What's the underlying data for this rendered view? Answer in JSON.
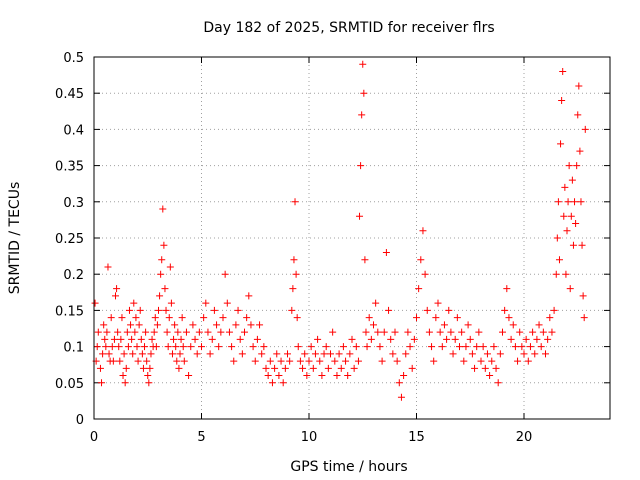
{
  "chart_data": {
    "type": "scatter",
    "title": "Day 182 of 2025, SRMTID for receiver flrs",
    "xlabel": "GPS time / hours",
    "ylabel": "SRMTID / TECUs",
    "xlim": [
      0,
      24
    ],
    "ylim": [
      0,
      0.5
    ],
    "xticks": [
      0,
      5,
      10,
      15,
      20
    ],
    "xtick_labels": [
      "0",
      "5",
      "10",
      "15",
      "20"
    ],
    "yticks": [
      0,
      0.05,
      0.1,
      0.15,
      0.2,
      0.25,
      0.3,
      0.35,
      0.4,
      0.45,
      0.5
    ],
    "ytick_labels": [
      "0",
      "0.05",
      "0.1",
      "0.15",
      "0.2",
      "0.25",
      "0.3",
      "0.35",
      "0.4",
      "0.45",
      "0.5"
    ],
    "grid": true,
    "marker": "+",
    "marker_color": "#ff0000",
    "series": [
      {
        "points": [
          [
            0.05,
            0.16
          ],
          [
            0.1,
            0.08
          ],
          [
            0.15,
            0.1
          ],
          [
            0.2,
            0.12
          ],
          [
            0.3,
            0.07
          ],
          [
            0.35,
            0.05
          ],
          [
            0.4,
            0.09
          ],
          [
            0.45,
            0.13
          ],
          [
            0.5,
            0.11
          ],
          [
            0.55,
            0.1
          ],
          [
            0.6,
            0.12
          ],
          [
            0.65,
            0.21
          ],
          [
            0.7,
            0.09
          ],
          [
            0.75,
            0.08
          ],
          [
            0.8,
            0.14
          ],
          [
            0.85,
            0.1
          ],
          [
            0.9,
            0.08
          ],
          [
            0.95,
            0.11
          ],
          [
            1.0,
            0.17
          ],
          [
            1.05,
            0.18
          ],
          [
            1.1,
            0.12
          ],
          [
            1.15,
            0.1
          ],
          [
            1.2,
            0.08
          ],
          [
            1.25,
            0.11
          ],
          [
            1.3,
            0.14
          ],
          [
            1.35,
            0.06
          ],
          [
            1.4,
            0.09
          ],
          [
            1.45,
            0.05
          ],
          [
            1.5,
            0.07
          ],
          [
            1.55,
            0.12
          ],
          [
            1.6,
            0.1
          ],
          [
            1.65,
            0.15
          ],
          [
            1.7,
            0.13
          ],
          [
            1.75,
            0.11
          ],
          [
            1.8,
            0.09
          ],
          [
            1.85,
            0.16
          ],
          [
            1.9,
            0.12
          ],
          [
            1.95,
            0.14
          ],
          [
            2.0,
            0.1
          ],
          [
            2.05,
            0.08
          ],
          [
            2.1,
            0.13
          ],
          [
            2.15,
            0.15
          ],
          [
            2.2,
            0.11
          ],
          [
            2.25,
            0.09
          ],
          [
            2.3,
            0.07
          ],
          [
            2.35,
            0.1
          ],
          [
            2.4,
            0.12
          ],
          [
            2.45,
            0.08
          ],
          [
            2.5,
            0.06
          ],
          [
            2.55,
            0.05
          ],
          [
            2.6,
            0.07
          ],
          [
            2.65,
            0.09
          ],
          [
            2.7,
            0.11
          ],
          [
            2.75,
            0.1
          ],
          [
            2.8,
            0.12
          ],
          [
            2.85,
            0.14
          ],
          [
            2.9,
            0.1
          ],
          [
            2.95,
            0.13
          ],
          [
            3.0,
            0.15
          ],
          [
            3.05,
            0.17
          ],
          [
            3.1,
            0.2
          ],
          [
            3.15,
            0.22
          ],
          [
            3.2,
            0.29
          ],
          [
            3.25,
            0.24
          ],
          [
            3.3,
            0.18
          ],
          [
            3.35,
            0.15
          ],
          [
            3.4,
            0.12
          ],
          [
            3.45,
            0.1
          ],
          [
            3.5,
            0.14
          ],
          [
            3.55,
            0.21
          ],
          [
            3.6,
            0.16
          ],
          [
            3.65,
            0.09
          ],
          [
            3.7,
            0.11
          ],
          [
            3.75,
            0.13
          ],
          [
            3.8,
            0.1
          ],
          [
            3.85,
            0.08
          ],
          [
            3.9,
            0.12
          ],
          [
            3.95,
            0.07
          ],
          [
            4.0,
            0.09
          ],
          [
            4.05,
            0.11
          ],
          [
            4.1,
            0.14
          ],
          [
            4.15,
            0.1
          ],
          [
            4.2,
            0.08
          ],
          [
            4.3,
            0.12
          ],
          [
            4.4,
            0.06
          ],
          [
            4.5,
            0.1
          ],
          [
            4.6,
            0.13
          ],
          [
            4.7,
            0.11
          ],
          [
            4.8,
            0.09
          ],
          [
            4.9,
            0.12
          ],
          [
            5.0,
            0.1
          ],
          [
            5.1,
            0.14
          ],
          [
            5.2,
            0.16
          ],
          [
            5.3,
            0.12
          ],
          [
            5.4,
            0.09
          ],
          [
            5.5,
            0.11
          ],
          [
            5.6,
            0.15
          ],
          [
            5.7,
            0.13
          ],
          [
            5.8,
            0.1
          ],
          [
            5.9,
            0.12
          ],
          [
            6.0,
            0.14
          ],
          [
            6.1,
            0.2
          ],
          [
            6.2,
            0.16
          ],
          [
            6.3,
            0.12
          ],
          [
            6.4,
            0.1
          ],
          [
            6.5,
            0.08
          ],
          [
            6.6,
            0.13
          ],
          [
            6.7,
            0.15
          ],
          [
            6.8,
            0.11
          ],
          [
            6.9,
            0.09
          ],
          [
            7.0,
            0.12
          ],
          [
            7.1,
            0.14
          ],
          [
            7.2,
            0.17
          ],
          [
            7.3,
            0.13
          ],
          [
            7.4,
            0.1
          ],
          [
            7.5,
            0.08
          ],
          [
            7.6,
            0.11
          ],
          [
            7.7,
            0.13
          ],
          [
            7.8,
            0.09
          ],
          [
            7.9,
            0.1
          ],
          [
            8.0,
            0.07
          ],
          [
            8.1,
            0.06
          ],
          [
            8.2,
            0.08
          ],
          [
            8.3,
            0.05
          ],
          [
            8.4,
            0.07
          ],
          [
            8.5,
            0.09
          ],
          [
            8.6,
            0.06
          ],
          [
            8.7,
            0.08
          ],
          [
            8.8,
            0.05
          ],
          [
            8.9,
            0.07
          ],
          [
            9.0,
            0.09
          ],
          [
            9.1,
            0.08
          ],
          [
            9.2,
            0.15
          ],
          [
            9.25,
            0.18
          ],
          [
            9.3,
            0.22
          ],
          [
            9.35,
            0.3
          ],
          [
            9.4,
            0.2
          ],
          [
            9.45,
            0.14
          ],
          [
            9.5,
            0.1
          ],
          [
            9.6,
            0.08
          ],
          [
            9.7,
            0.07
          ],
          [
            9.8,
            0.09
          ],
          [
            9.9,
            0.06
          ],
          [
            10.0,
            0.08
          ],
          [
            10.1,
            0.1
          ],
          [
            10.2,
            0.07
          ],
          [
            10.3,
            0.09
          ],
          [
            10.4,
            0.11
          ],
          [
            10.5,
            0.08
          ],
          [
            10.6,
            0.06
          ],
          [
            10.7,
            0.09
          ],
          [
            10.8,
            0.1
          ],
          [
            10.9,
            0.07
          ],
          [
            11.0,
            0.09
          ],
          [
            11.1,
            0.12
          ],
          [
            11.2,
            0.08
          ],
          [
            11.3,
            0.06
          ],
          [
            11.4,
            0.09
          ],
          [
            11.5,
            0.07
          ],
          [
            11.6,
            0.1
          ],
          [
            11.7,
            0.08
          ],
          [
            11.8,
            0.06
          ],
          [
            11.9,
            0.09
          ],
          [
            12.0,
            0.11
          ],
          [
            12.1,
            0.07
          ],
          [
            12.2,
            0.1
          ],
          [
            12.3,
            0.08
          ],
          [
            12.35,
            0.28
          ],
          [
            12.4,
            0.35
          ],
          [
            12.45,
            0.42
          ],
          [
            12.5,
            0.49
          ],
          [
            12.55,
            0.45
          ],
          [
            12.6,
            0.22
          ],
          [
            12.65,
            0.12
          ],
          [
            12.7,
            0.1
          ],
          [
            12.8,
            0.14
          ],
          [
            12.9,
            0.11
          ],
          [
            13.0,
            0.13
          ],
          [
            13.1,
            0.16
          ],
          [
            13.2,
            0.12
          ],
          [
            13.3,
            0.1
          ],
          [
            13.4,
            0.08
          ],
          [
            13.5,
            0.12
          ],
          [
            13.6,
            0.23
          ],
          [
            13.7,
            0.15
          ],
          [
            13.8,
            0.11
          ],
          [
            13.9,
            0.09
          ],
          [
            14.0,
            0.12
          ],
          [
            14.1,
            0.08
          ],
          [
            14.2,
            0.05
          ],
          [
            14.3,
            0.03
          ],
          [
            14.4,
            0.06
          ],
          [
            14.5,
            0.09
          ],
          [
            14.6,
            0.12
          ],
          [
            14.7,
            0.1
          ],
          [
            14.8,
            0.07
          ],
          [
            14.9,
            0.11
          ],
          [
            15.0,
            0.14
          ],
          [
            15.1,
            0.18
          ],
          [
            15.2,
            0.22
          ],
          [
            15.3,
            0.26
          ],
          [
            15.4,
            0.2
          ],
          [
            15.5,
            0.15
          ],
          [
            15.6,
            0.12
          ],
          [
            15.7,
            0.1
          ],
          [
            15.8,
            0.08
          ],
          [
            15.9,
            0.14
          ],
          [
            16.0,
            0.16
          ],
          [
            16.1,
            0.12
          ],
          [
            16.2,
            0.1
          ],
          [
            16.3,
            0.13
          ],
          [
            16.4,
            0.11
          ],
          [
            16.5,
            0.15
          ],
          [
            16.6,
            0.12
          ],
          [
            16.7,
            0.09
          ],
          [
            16.8,
            0.11
          ],
          [
            16.9,
            0.14
          ],
          [
            17.0,
            0.1
          ],
          [
            17.1,
            0.12
          ],
          [
            17.2,
            0.08
          ],
          [
            17.3,
            0.1
          ],
          [
            17.4,
            0.13
          ],
          [
            17.5,
            0.11
          ],
          [
            17.6,
            0.09
          ],
          [
            17.7,
            0.07
          ],
          [
            17.8,
            0.1
          ],
          [
            17.9,
            0.12
          ],
          [
            18.0,
            0.08
          ],
          [
            18.1,
            0.1
          ],
          [
            18.2,
            0.07
          ],
          [
            18.3,
            0.09
          ],
          [
            18.4,
            0.06
          ],
          [
            18.5,
            0.08
          ],
          [
            18.6,
            0.1
          ],
          [
            18.7,
            0.07
          ],
          [
            18.8,
            0.05
          ],
          [
            18.9,
            0.09
          ],
          [
            19.0,
            0.12
          ],
          [
            19.1,
            0.15
          ],
          [
            19.2,
            0.18
          ],
          [
            19.3,
            0.14
          ],
          [
            19.4,
            0.11
          ],
          [
            19.5,
            0.13
          ],
          [
            19.6,
            0.1
          ],
          [
            19.7,
            0.08
          ],
          [
            19.8,
            0.12
          ],
          [
            19.9,
            0.1
          ],
          [
            20.0,
            0.09
          ],
          [
            20.1,
            0.11
          ],
          [
            20.2,
            0.08
          ],
          [
            20.3,
            0.1
          ],
          [
            20.4,
            0.12
          ],
          [
            20.5,
            0.09
          ],
          [
            20.6,
            0.11
          ],
          [
            20.7,
            0.13
          ],
          [
            20.8,
            0.1
          ],
          [
            20.9,
            0.12
          ],
          [
            21.0,
            0.09
          ],
          [
            21.1,
            0.11
          ],
          [
            21.2,
            0.14
          ],
          [
            21.3,
            0.12
          ],
          [
            21.4,
            0.15
          ],
          [
            21.5,
            0.2
          ],
          [
            21.55,
            0.25
          ],
          [
            21.6,
            0.3
          ],
          [
            21.65,
            0.22
          ],
          [
            21.7,
            0.38
          ],
          [
            21.75,
            0.44
          ],
          [
            21.8,
            0.48
          ],
          [
            21.85,
            0.28
          ],
          [
            21.9,
            0.32
          ],
          [
            21.95,
            0.2
          ],
          [
            22.0,
            0.26
          ],
          [
            22.05,
            0.3
          ],
          [
            22.1,
            0.35
          ],
          [
            22.15,
            0.18
          ],
          [
            22.2,
            0.28
          ],
          [
            22.25,
            0.33
          ],
          [
            22.3,
            0.24
          ],
          [
            22.35,
            0.3
          ],
          [
            22.4,
            0.27
          ],
          [
            22.45,
            0.35
          ],
          [
            22.5,
            0.42
          ],
          [
            22.55,
            0.46
          ],
          [
            22.6,
            0.37
          ],
          [
            22.65,
            0.3
          ],
          [
            22.7,
            0.24
          ],
          [
            22.75,
            0.17
          ],
          [
            22.8,
            0.14
          ],
          [
            22.85,
            0.4
          ]
        ]
      }
    ]
  }
}
